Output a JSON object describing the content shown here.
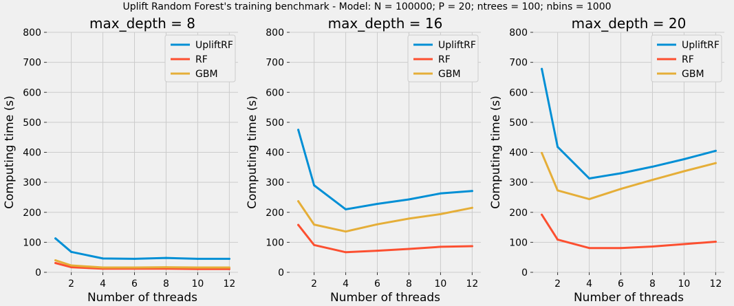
{
  "suptitle": "Uplift Random Forest's training benchmark - Model: N = 100000; P = 20; ntrees = 100; nbins = 1000",
  "colors": {
    "UpliftRF": "#008fd5",
    "RF": "#fc4f30",
    "GBM": "#e5ae38",
    "background": "#f0f0f0",
    "grid": "#cbcbcb"
  },
  "chart_data": [
    {
      "type": "line",
      "title": "max_depth = 8",
      "xlabel": "Number of threads",
      "ylabel": "Computing time (s)",
      "xlim": [
        0.45,
        12.55
      ],
      "ylim": [
        0,
        800
      ],
      "xticks": [
        2,
        4,
        6,
        8,
        10,
        12
      ],
      "yticks": [
        0,
        100,
        200,
        300,
        400,
        500,
        600,
        700,
        800
      ],
      "grid": true,
      "legend": "top-right",
      "x": [
        1,
        2,
        4,
        6,
        8,
        10,
        12
      ],
      "series": [
        {
          "name": "UpliftRF",
          "values": [
            113,
            68,
            46,
            45,
            48,
            45,
            45
          ]
        },
        {
          "name": "RF",
          "values": [
            31,
            17,
            12,
            12,
            12,
            11,
            11
          ]
        },
        {
          "name": "GBM",
          "values": [
            40,
            23,
            16,
            16,
            17,
            16,
            16
          ]
        }
      ]
    },
    {
      "type": "line",
      "title": "max_depth = 16",
      "xlabel": "Number of threads",
      "ylabel": "Computing time (s)",
      "xlim": [
        0.45,
        12.55
      ],
      "ylim": [
        0,
        800
      ],
      "xticks": [
        2,
        4,
        6,
        8,
        10,
        12
      ],
      "yticks": [
        0,
        100,
        200,
        300,
        400,
        500,
        600,
        700,
        800
      ],
      "grid": true,
      "legend": "top-right",
      "x": [
        1,
        2,
        4,
        6,
        8,
        10,
        12
      ],
      "series": [
        {
          "name": "UpliftRF",
          "values": [
            475,
            290,
            210,
            228,
            243,
            263,
            271
          ]
        },
        {
          "name": "RF",
          "values": [
            158,
            91,
            67,
            72,
            78,
            85,
            87
          ]
        },
        {
          "name": "GBM",
          "values": [
            237,
            159,
            136,
            160,
            179,
            194,
            215
          ]
        }
      ]
    },
    {
      "type": "line",
      "title": "max_depth = 20",
      "xlabel": "Number of threads",
      "ylabel": "Computing time (s)",
      "xlim": [
        0.45,
        12.55
      ],
      "ylim": [
        0,
        800
      ],
      "xticks": [
        2,
        4,
        6,
        8,
        10,
        12
      ],
      "yticks": [
        0,
        100,
        200,
        300,
        400,
        500,
        600,
        700,
        800
      ],
      "grid": true,
      "legend": "top-right",
      "x": [
        1,
        2,
        4,
        6,
        8,
        10,
        12
      ],
      "series": [
        {
          "name": "UpliftRF",
          "values": [
            678,
            418,
            313,
            330,
            352,
            377,
            405
          ]
        },
        {
          "name": "RF",
          "values": [
            192,
            109,
            81,
            81,
            86,
            94,
            102
          ]
        },
        {
          "name": "GBM",
          "values": [
            398,
            273,
            244,
            278,
            308,
            337,
            364
          ]
        }
      ]
    }
  ]
}
